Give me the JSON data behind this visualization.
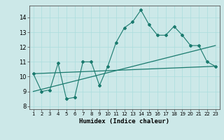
{
  "title": "",
  "xlabel": "Humidex (Indice chaleur)",
  "bg_color": "#cce8e8",
  "line_color": "#1a7a6e",
  "xlim": [
    0.5,
    23.5
  ],
  "ylim": [
    7.8,
    14.8
  ],
  "yticks": [
    8,
    9,
    10,
    11,
    12,
    13,
    14
  ],
  "xticks": [
    1,
    2,
    3,
    4,
    5,
    6,
    7,
    8,
    9,
    10,
    11,
    12,
    13,
    14,
    15,
    16,
    17,
    18,
    19,
    20,
    21,
    22,
    23
  ],
  "line1_x": [
    1,
    2,
    3,
    4,
    5,
    6,
    7,
    8,
    9,
    10,
    11,
    12,
    13,
    14,
    15,
    16,
    17,
    18,
    19,
    20,
    21,
    22,
    23
  ],
  "line1_y": [
    10.2,
    9.0,
    9.1,
    10.9,
    8.5,
    8.6,
    11.0,
    11.0,
    9.4,
    10.7,
    12.3,
    13.3,
    13.7,
    14.5,
    13.5,
    12.8,
    12.8,
    13.4,
    12.8,
    12.1,
    12.1,
    11.0,
    10.7
  ],
  "line2_x": [
    1,
    23
  ],
  "line2_y": [
    10.2,
    10.7
  ],
  "line3_x": [
    1,
    23
  ],
  "line3_y": [
    9.0,
    12.1
  ]
}
